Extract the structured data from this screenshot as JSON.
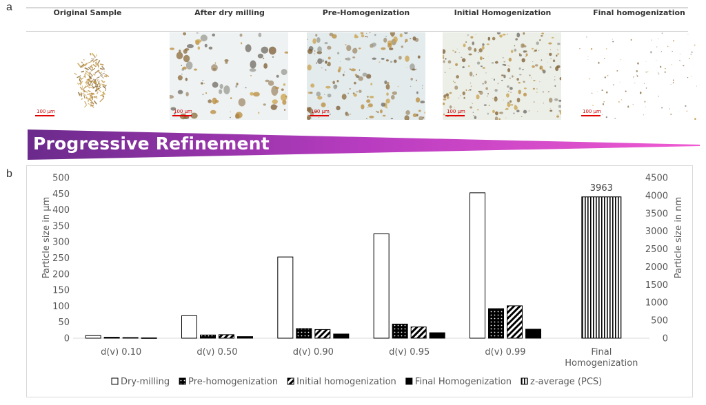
{
  "panel_labels": {
    "a": "a",
    "b": "b"
  },
  "micrographs": [
    {
      "title": "Original Sample",
      "scale_label": "100 µm"
    },
    {
      "title": "After dry milling",
      "scale_label": "100 µm"
    },
    {
      "title": "Pre-Homogenization",
      "scale_label": "100 µm"
    },
    {
      "title": "Initial Homogenization",
      "scale_label": "100 µm"
    },
    {
      "title": "Final homogenization",
      "scale_label": "100 µm"
    }
  ],
  "banner": {
    "text": "Progressive Refinement",
    "color_start": "#6b2a8c",
    "color_end": "#f05ad2"
  },
  "chart_data": {
    "type": "bar",
    "categories": [
      "d(v) 0.10",
      "d(v) 0.50",
      "d(v) 0.90",
      "d(v) 0.95",
      "d(v) 0.99",
      "Final Homogenization"
    ],
    "series": [
      {
        "name": "Dry-milling",
        "axis": "left",
        "values": [
          8,
          70,
          253,
          325,
          453,
          null
        ],
        "pattern": "white"
      },
      {
        "name": "Pre-homogenization",
        "axis": "left",
        "values": [
          3,
          10,
          30,
          44,
          92,
          null
        ],
        "pattern": "dots"
      },
      {
        "name": "Initial homogenization",
        "axis": "left",
        "values": [
          2,
          11,
          27,
          35,
          101,
          null
        ],
        "pattern": "hatch"
      },
      {
        "name": "Final Homogenization",
        "axis": "left",
        "values": [
          1,
          5,
          13,
          17,
          28,
          null
        ],
        "pattern": "black"
      },
      {
        "name": "z-average (PCS)",
        "axis": "right",
        "values": [
          null,
          null,
          null,
          null,
          null,
          3963
        ],
        "pattern": "vlines"
      }
    ],
    "ylabel": "Particle size in µm",
    "y2label": "Particle size in nm",
    "ylim": [
      0,
      500
    ],
    "y2lim": [
      0,
      4500
    ],
    "yticks": [
      0,
      50,
      100,
      150,
      200,
      250,
      300,
      350,
      400,
      450,
      500
    ],
    "y2ticks": [
      0,
      500,
      1000,
      1500,
      2000,
      2500,
      3000,
      3500,
      4000,
      4500
    ],
    "data_labels": [
      {
        "category": "Final Homogenization",
        "text": "3963"
      }
    ],
    "legend_position": "bottom",
    "grid": false
  }
}
